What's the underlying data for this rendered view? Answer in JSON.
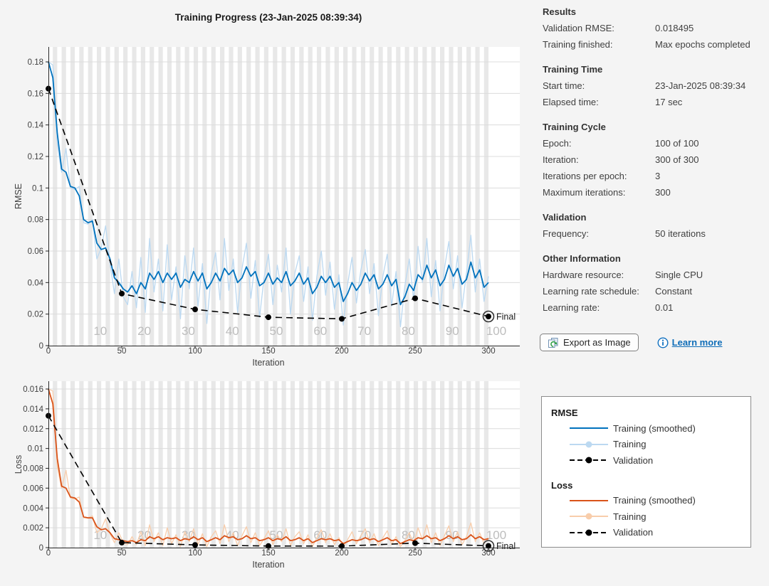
{
  "title": "Training Progress (23-Jan-2025 08:39:34)",
  "info_panel": {
    "sections": [
      {
        "title": "Results",
        "rows": [
          [
            "Validation RMSE:",
            "0.018495"
          ],
          [
            "Training finished:",
            "Max epochs completed"
          ]
        ]
      },
      {
        "title": "Training Time",
        "rows": [
          [
            "Start time:",
            "23-Jan-2025 08:39:34"
          ],
          [
            "Elapsed time:",
            "17 sec"
          ]
        ]
      },
      {
        "title": "Training Cycle",
        "rows": [
          [
            "Epoch:",
            "100 of 100"
          ],
          [
            "Iteration:",
            "300 of 300"
          ],
          [
            "Iterations per epoch:",
            "3"
          ],
          [
            "Maximum iterations:",
            "300"
          ]
        ]
      },
      {
        "title": "Validation",
        "rows": [
          [
            "Frequency:",
            "50 iterations"
          ]
        ]
      },
      {
        "title": "Other Information",
        "rows": [
          [
            "Hardware resource:",
            "Single CPU"
          ],
          [
            "Learning rate schedule:",
            "Constant"
          ],
          [
            "Learning rate:",
            "0.01"
          ]
        ]
      }
    ]
  },
  "export_button": {
    "label": "Export as Image"
  },
  "learn_more": {
    "label": "Learn more"
  },
  "legend": {
    "groups": [
      {
        "title": "RMSE",
        "items": [
          {
            "label": "Training (smoothed)",
            "style": "solid",
            "color": "#0072bd"
          },
          {
            "label": "Training",
            "style": "solid-dot",
            "color": "#bcd9f1"
          },
          {
            "label": "Validation",
            "style": "dash-dot",
            "color": "#000000"
          }
        ]
      },
      {
        "title": "Loss",
        "items": [
          {
            "label": "Training (smoothed)",
            "style": "solid",
            "color": "#d95319"
          },
          {
            "label": "Training",
            "style": "solid-dot",
            "color": "#f8cdab"
          },
          {
            "label": "Validation",
            "style": "dash-dot",
            "color": "#000000"
          }
        ]
      }
    ]
  },
  "colors": {
    "background": "#f4f4f4",
    "plot_background": "#ffffff",
    "epoch_band": "#e8e8e8",
    "grid": "#dcdcdc",
    "axis": "#262626",
    "tick_text": "#404040",
    "epoch_text": "#bdbdbd",
    "rmse_smoothed": "#0072bd",
    "rmse_raw": "#bcd9f1",
    "loss_smoothed": "#d95319",
    "loss_raw": "#f8cdab",
    "validation": "#000000",
    "link": "#0f6db8"
  },
  "chart_data": [
    {
      "type": "line",
      "title": "Training Progress (23-Jan-2025 08:39:34)",
      "xlabel": "Iteration",
      "ylabel": "RMSE",
      "xlim": [
        0,
        300
      ],
      "ylim": [
        0,
        0.19
      ],
      "grid": true,
      "epochs": 100,
      "iterations_per_epoch": 3,
      "xticks": [
        "0",
        "50",
        "100",
        "150",
        "200",
        "250",
        "300"
      ],
      "xtick_values": [
        0,
        50,
        100,
        150,
        200,
        250,
        300
      ],
      "ytick_values": [
        0,
        0.02,
        0.04,
        0.06,
        0.08,
        0.1,
        0.12,
        0.14,
        0.16,
        0.18
      ],
      "ytick_labels": [
        "0",
        "0.02",
        "0.04",
        "0.06",
        "0.08",
        "0.1",
        "0.12",
        "0.14",
        "0.16",
        "0.18"
      ],
      "epoch_labels": [
        "10",
        "20",
        "30",
        "40",
        "50",
        "60",
        "70",
        "80",
        "90",
        "100"
      ],
      "series": [
        {
          "name": "Training",
          "role": "raw",
          "color": "#bcd9f1",
          "x_start": 0,
          "x_step": 3,
          "values": [
            0.18,
            0.178,
            0.128,
            0.11,
            0.125,
            0.1,
            0.099,
            0.101,
            0.078,
            0.077,
            0.08,
            0.055,
            0.062,
            0.076,
            0.052,
            0.033,
            0.055,
            0.031,
            0.026,
            0.047,
            0.024,
            0.056,
            0.021,
            0.068,
            0.034,
            0.055,
            0.022,
            0.064,
            0.029,
            0.05,
            0.017,
            0.057,
            0.036,
            0.062,
            0.025,
            0.052,
            0.014,
            0.046,
            0.059,
            0.029,
            0.068,
            0.035,
            0.055,
            0.021,
            0.049,
            0.065,
            0.03,
            0.054,
            0.018,
            0.043,
            0.058,
            0.026,
            0.051,
            0.034,
            0.062,
            0.02,
            0.046,
            0.057,
            0.028,
            0.05,
            0.016,
            0.044,
            0.06,
            0.032,
            0.053,
            0.023,
            0.045,
            0.013,
            0.039,
            0.056,
            0.027,
            0.048,
            0.061,
            0.033,
            0.052,
            0.019,
            0.044,
            0.058,
            0.025,
            0.047,
            0.012,
            0.038,
            0.055,
            0.029,
            0.063,
            0.04,
            0.068,
            0.031,
            0.054,
            0.022,
            0.049,
            0.066,
            0.036,
            0.057,
            0.024,
            0.046,
            0.07,
            0.034,
            0.055,
            0.028,
            0.044
          ]
        },
        {
          "name": "Training (smoothed)",
          "role": "smoothed",
          "color": "#0072bd",
          "x_start": 0,
          "x_step": 3,
          "values": [
            0.18,
            0.17,
            0.135,
            0.112,
            0.11,
            0.101,
            0.1,
            0.095,
            0.08,
            0.078,
            0.079,
            0.065,
            0.061,
            0.062,
            0.055,
            0.043,
            0.04,
            0.036,
            0.034,
            0.038,
            0.033,
            0.04,
            0.036,
            0.046,
            0.042,
            0.047,
            0.04,
            0.046,
            0.042,
            0.046,
            0.037,
            0.042,
            0.04,
            0.047,
            0.041,
            0.046,
            0.036,
            0.04,
            0.046,
            0.041,
            0.049,
            0.045,
            0.048,
            0.04,
            0.043,
            0.05,
            0.044,
            0.047,
            0.038,
            0.04,
            0.046,
            0.039,
            0.043,
            0.04,
            0.047,
            0.038,
            0.041,
            0.046,
            0.039,
            0.043,
            0.033,
            0.037,
            0.044,
            0.04,
            0.044,
            0.037,
            0.04,
            0.028,
            0.033,
            0.04,
            0.035,
            0.039,
            0.046,
            0.041,
            0.045,
            0.036,
            0.039,
            0.045,
            0.038,
            0.042,
            0.026,
            0.031,
            0.039,
            0.035,
            0.045,
            0.042,
            0.051,
            0.043,
            0.048,
            0.038,
            0.042,
            0.051,
            0.044,
            0.049,
            0.039,
            0.042,
            0.053,
            0.043,
            0.048,
            0.037,
            0.04
          ]
        },
        {
          "name": "Validation",
          "role": "validation",
          "color": "#000000",
          "final_label": "Final",
          "points": [
            [
              0,
              0.163
            ],
            [
              50,
              0.033
            ],
            [
              100,
              0.023
            ],
            [
              150,
              0.018
            ],
            [
              200,
              0.017
            ],
            [
              250,
              0.03
            ],
            [
              300,
              0.018495
            ]
          ]
        }
      ]
    },
    {
      "type": "line",
      "title": "",
      "xlabel": "Iteration",
      "ylabel": "Loss",
      "xlim": [
        0,
        300
      ],
      "ylim": [
        0,
        0.0168
      ],
      "grid": true,
      "epochs": 100,
      "iterations_per_epoch": 3,
      "xticks": [
        "0",
        "50",
        "100",
        "150",
        "200",
        "250",
        "300"
      ],
      "xtick_values": [
        0,
        50,
        100,
        150,
        200,
        250,
        300
      ],
      "ytick_values": [
        0,
        0.002,
        0.004,
        0.006,
        0.008,
        0.01,
        0.012,
        0.014,
        0.016
      ],
      "ytick_labels": [
        "0",
        "0.002",
        "0.004",
        "0.006",
        "0.008",
        "0.01",
        "0.012",
        "0.014",
        "0.016"
      ],
      "epoch_labels": [
        "10",
        "20",
        "30",
        "40",
        "50",
        "60",
        "70",
        "80",
        "90",
        "100"
      ],
      "series": [
        {
          "name": "Training",
          "role": "raw",
          "color": "#f8cdab",
          "x_start": 0,
          "x_step": 3,
          "values": [
            0.016,
            0.0158,
            0.0082,
            0.006,
            0.0078,
            0.005,
            0.0049,
            0.0051,
            0.003,
            0.003,
            0.0032,
            0.0015,
            0.0019,
            0.0029,
            0.0014,
            0.0005,
            0.0015,
            0.0005,
            0.0003,
            0.0011,
            0.0003,
            0.0016,
            0.0002,
            0.0023,
            0.0006,
            0.0015,
            0.0002,
            0.002,
            0.0004,
            0.0013,
            0.0001,
            0.0016,
            0.0006,
            0.0019,
            0.0003,
            0.0014,
            0.0001,
            0.0011,
            0.0017,
            0.0004,
            0.0023,
            0.0006,
            0.0015,
            0.0002,
            0.0012,
            0.0021,
            0.0005,
            0.0015,
            0.0002,
            0.0009,
            0.0017,
            0.0003,
            0.0013,
            0.0006,
            0.0019,
            0.0002,
            0.0011,
            0.0016,
            0.0004,
            0.0013,
            0.0001,
            0.001,
            0.0018,
            0.0005,
            0.0014,
            0.0003,
            0.001,
            0.0001,
            0.0008,
            0.0016,
            0.0004,
            0.0012,
            0.0019,
            0.0005,
            0.0014,
            0.0002,
            0.001,
            0.0017,
            0.0003,
            0.0011,
            0.0001,
            0.0007,
            0.0015,
            0.0004,
            0.002,
            0.0008,
            0.0023,
            0.0005,
            0.0015,
            0.0002,
            0.0012,
            0.0022,
            0.0006,
            0.0016,
            0.0003,
            0.0011,
            0.0025,
            0.0006,
            0.0015,
            0.0004,
            0.001
          ]
        },
        {
          "name": "Training (smoothed)",
          "role": "smoothed",
          "color": "#d95319",
          "x_start": 0,
          "x_step": 3,
          "values": [
            0.016,
            0.0145,
            0.009,
            0.0062,
            0.006,
            0.0051,
            0.005,
            0.0046,
            0.0031,
            0.003,
            0.003,
            0.0021,
            0.0018,
            0.0019,
            0.0015,
            0.0009,
            0.0008,
            0.0007,
            0.0006,
            0.0007,
            0.0005,
            0.0008,
            0.0007,
            0.0011,
            0.0009,
            0.0011,
            0.0008,
            0.001,
            0.0009,
            0.001,
            0.0007,
            0.0009,
            0.0008,
            0.0011,
            0.0008,
            0.001,
            0.0006,
            0.0008,
            0.001,
            0.0008,
            0.0012,
            0.001,
            0.0011,
            0.0008,
            0.0009,
            0.0012,
            0.0009,
            0.001,
            0.0007,
            0.0008,
            0.001,
            0.0007,
            0.0009,
            0.0008,
            0.0011,
            0.0007,
            0.0008,
            0.001,
            0.0007,
            0.0009,
            0.0005,
            0.0007,
            0.0009,
            0.0008,
            0.0009,
            0.0007,
            0.0008,
            0.0004,
            0.0006,
            0.0008,
            0.0007,
            0.0008,
            0.001,
            0.0008,
            0.0009,
            0.0006,
            0.0008,
            0.001,
            0.0007,
            0.0008,
            0.0004,
            0.0006,
            0.0008,
            0.0007,
            0.001,
            0.0009,
            0.0012,
            0.0009,
            0.001,
            0.0007,
            0.0009,
            0.0012,
            0.0009,
            0.0011,
            0.0008,
            0.0009,
            0.0013,
            0.0009,
            0.0011,
            0.0008,
            0.0009
          ]
        },
        {
          "name": "Validation",
          "role": "validation",
          "color": "#000000",
          "final_label": "Final",
          "points": [
            [
              0,
              0.0133
            ],
            [
              50,
              0.0005
            ],
            [
              100,
              0.00027
            ],
            [
              150,
              0.00016
            ],
            [
              200,
              0.00015
            ],
            [
              250,
              0.00045
            ],
            [
              300,
              0.00017
            ]
          ]
        }
      ]
    }
  ]
}
